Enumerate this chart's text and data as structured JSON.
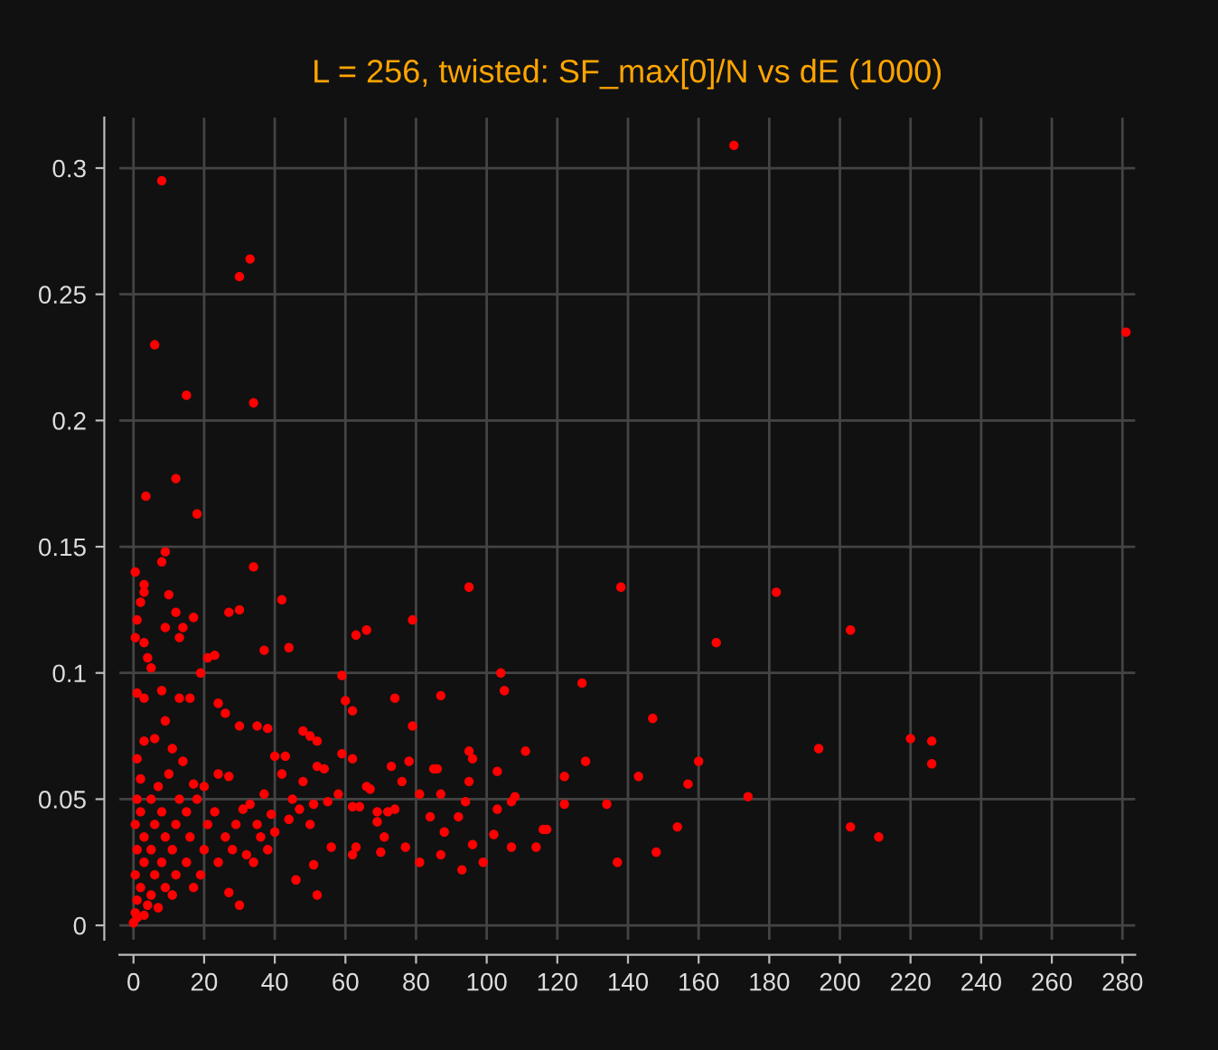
{
  "chart_data": {
    "type": "scatter",
    "title": "L = 256, twisted: SF_max[0]/N vs dE (1000)",
    "xlim": [
      -4,
      283.6
    ],
    "ylim": [
      -0.0057,
      0.32
    ],
    "xticks": [
      0,
      20,
      40,
      60,
      80,
      100,
      120,
      140,
      160,
      180,
      200,
      220,
      240,
      260,
      280
    ],
    "yticks": [
      0,
      0.05,
      0.1,
      0.15,
      0.2,
      0.25,
      0.3
    ],
    "grid": true,
    "marker": "circle",
    "series": [
      {
        "color": "#ff0000",
        "x": [
          170,
          281,
          138,
          182,
          203,
          165,
          127,
          147,
          194,
          220,
          226,
          226,
          160,
          128,
          122,
          143,
          157,
          174,
          134,
          116,
          154,
          203,
          211,
          148,
          137,
          8,
          33,
          30,
          6,
          15,
          34,
          12,
          3.5,
          18,
          34,
          9,
          8,
          0.5,
          3,
          3,
          10,
          2,
          12,
          17,
          27,
          30,
          42,
          44,
          37,
          95,
          79,
          66,
          63,
          1,
          0.5,
          3,
          4,
          5,
          9,
          14,
          13,
          104,
          105,
          59,
          60,
          62,
          74,
          87,
          19,
          21,
          23,
          1,
          8,
          3,
          13,
          16,
          24,
          26,
          35,
          38,
          30,
          48,
          50,
          52,
          40,
          43,
          59,
          62,
          79,
          73,
          78,
          85,
          86,
          95,
          96,
          95,
          103,
          111,
          108,
          107,
          103,
          94,
          92,
          87,
          81,
          76,
          74,
          72,
          69,
          66,
          67,
          62,
          64,
          58,
          55,
          51,
          52,
          54,
          48,
          45,
          42,
          39,
          37,
          33,
          31,
          27,
          24,
          20,
          17,
          14,
          11,
          9,
          6,
          3,
          1,
          44,
          47,
          50,
          40,
          36,
          34,
          30,
          27,
          52,
          46,
          51,
          56,
          63,
          62,
          69,
          71,
          70,
          77,
          81,
          87,
          88,
          93,
          96,
          99,
          102,
          107,
          114,
          117,
          122,
          84,
          0,
          0.5,
          1,
          0.5,
          1,
          0.5,
          1,
          2,
          2,
          3,
          3,
          2,
          4,
          5,
          6,
          5,
          6,
          5,
          7,
          8,
          9,
          8,
          9,
          11,
          12,
          11,
          12,
          13,
          15,
          16,
          15,
          17,
          19,
          20,
          21,
          23,
          24,
          26,
          28,
          29,
          32,
          35,
          38,
          1,
          3,
          7,
          10,
          18
        ],
        "values": [
          0.309,
          0.235,
          0.134,
          0.132,
          0.117,
          0.112,
          0.096,
          0.082,
          0.07,
          0.074,
          0.073,
          0.064,
          0.065,
          0.065,
          0.059,
          0.059,
          0.056,
          0.051,
          0.048,
          0.038,
          0.039,
          0.039,
          0.035,
          0.029,
          0.025,
          0.295,
          0.264,
          0.257,
          0.23,
          0.21,
          0.207,
          0.177,
          0.17,
          0.163,
          0.142,
          0.148,
          0.144,
          0.14,
          0.135,
          0.132,
          0.131,
          0.128,
          0.124,
          0.122,
          0.124,
          0.125,
          0.129,
          0.11,
          0.109,
          0.134,
          0.121,
          0.117,
          0.115,
          0.121,
          0.114,
          0.112,
          0.106,
          0.102,
          0.118,
          0.118,
          0.114,
          0.1,
          0.093,
          0.099,
          0.089,
          0.085,
          0.09,
          0.091,
          0.1,
          0.106,
          0.107,
          0.092,
          0.093,
          0.09,
          0.09,
          0.09,
          0.088,
          0.084,
          0.079,
          0.078,
          0.079,
          0.077,
          0.075,
          0.073,
          0.067,
          0.067,
          0.068,
          0.066,
          0.079,
          0.063,
          0.065,
          0.062,
          0.062,
          0.069,
          0.066,
          0.057,
          0.061,
          0.069,
          0.051,
          0.049,
          0.046,
          0.049,
          0.043,
          0.052,
          0.052,
          0.057,
          0.046,
          0.045,
          0.045,
          0.055,
          0.054,
          0.047,
          0.047,
          0.052,
          0.049,
          0.048,
          0.063,
          0.062,
          0.057,
          0.05,
          0.06,
          0.044,
          0.052,
          0.048,
          0.046,
          0.059,
          0.06,
          0.055,
          0.056,
          0.065,
          0.07,
          0.081,
          0.074,
          0.073,
          0.066,
          0.042,
          0.046,
          0.04,
          0.037,
          0.035,
          0.025,
          0.008,
          0.013,
          0.012,
          0.018,
          0.024,
          0.031,
          0.031,
          0.028,
          0.041,
          0.035,
          0.029,
          0.031,
          0.025,
          0.028,
          0.037,
          0.022,
          0.032,
          0.025,
          0.036,
          0.031,
          0.031,
          0.038,
          0.048,
          0.043,
          0.001,
          0.005,
          0.01,
          0.02,
          0.03,
          0.04,
          0.05,
          0.058,
          0.045,
          0.035,
          0.025,
          0.015,
          0.008,
          0.012,
          0.02,
          0.03,
          0.04,
          0.05,
          0.055,
          0.045,
          0.035,
          0.025,
          0.015,
          0.012,
          0.02,
          0.03,
          0.04,
          0.05,
          0.045,
          0.035,
          0.025,
          0.015,
          0.02,
          0.03,
          0.04,
          0.045,
          0.025,
          0.035,
          0.03,
          0.04,
          0.028,
          0.04,
          0.03,
          0.003,
          0.004,
          0.007,
          0.06,
          0.05
        ]
      }
    ]
  }
}
